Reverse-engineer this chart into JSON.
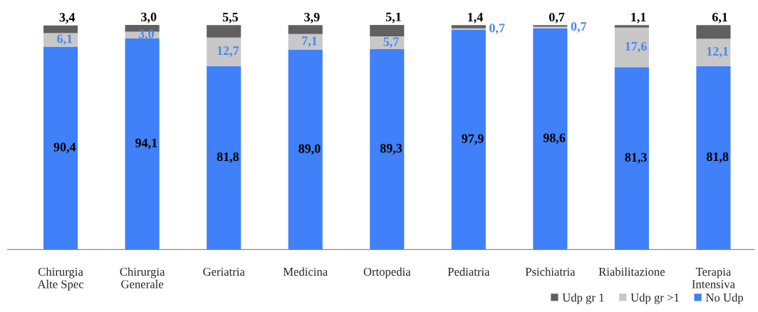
{
  "chart_data": {
    "type": "bar",
    "stacked": true,
    "categories": [
      "Chirurgia\nAlte Spec",
      "Chirurgia\nGenerale",
      "Geriatria",
      "Medicina",
      "Ortopedia",
      "Pediatria",
      "Psichiatria",
      "Riabilitazione",
      "Terapia\nIntensiva"
    ],
    "series": [
      {
        "name": "No Udp",
        "color": "#4080f8",
        "values": [
          90.4,
          94.1,
          81.8,
          89.0,
          89.3,
          97.9,
          98.6,
          81.3,
          81.8
        ],
        "value_labels": [
          "90,4",
          "94,1",
          "81,8",
          "89,0",
          "89,3",
          "97,9",
          "98,6",
          "81,3",
          "81,8"
        ]
      },
      {
        "name": "Udp gr >1",
        "color": "#c8c8c8",
        "values": [
          6.1,
          3.0,
          12.7,
          7.1,
          5.7,
          0.7,
          0.7,
          17.6,
          12.1
        ],
        "value_labels": [
          "6,1",
          "3,0",
          "12,7",
          "7,1",
          "5,7",
          "0,7",
          "0,7",
          "17,6",
          "12,1"
        ]
      },
      {
        "name": "Udp gr 1",
        "color": "#606060",
        "values": [
          3.4,
          3.0,
          5.5,
          3.9,
          5.1,
          1.4,
          0.7,
          1.1,
          6.1
        ],
        "value_labels": [
          "3,4",
          "3,0",
          "5,5",
          "3,9",
          "5,1",
          "1,4",
          "0,7",
          "1,1",
          "6,1"
        ]
      }
    ],
    "legend": "bottom right"
  }
}
